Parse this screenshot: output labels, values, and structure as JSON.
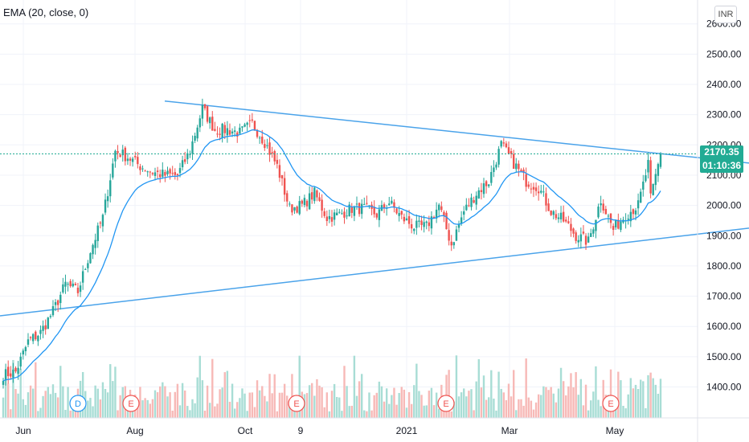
{
  "legend": {
    "indicator": "EMA (20, close, 0)"
  },
  "currency": "INR",
  "last_price": {
    "value": "2170.35",
    "countdown": "01:10:36"
  },
  "colors": {
    "up": "#26a69a",
    "down": "#ef5350",
    "ema": "#2196f3",
    "trendline": "#4aa3ea",
    "price_line": "#22ab94",
    "volume_up": "#a8ddd5",
    "volume_down": "#f7b9b7"
  },
  "event_markers": [
    {
      "label": "D",
      "color": "#2196f3",
      "date": "Jul 06"
    },
    {
      "label": "E",
      "color": "#ef5350",
      "date": "Aug 05"
    },
    {
      "label": "E",
      "color": "#ef5350",
      "date": "Nov 02"
    },
    {
      "label": "E",
      "color": "#ef5350",
      "date": "Feb 01"
    },
    {
      "label": "E",
      "color": "#ef5350",
      "date": "May 03"
    }
  ],
  "chart_data": {
    "type": "candlestick",
    "title": "",
    "xlabel": "",
    "ylabel": "",
    "x_ticks": [
      "Jun",
      "Aug",
      "Oct",
      "9",
      "2021",
      "Mar",
      "May"
    ],
    "y_ticks": [
      "1400.00",
      "1500.00",
      "1600.00",
      "1700.00",
      "1800.00",
      "1900.00",
      "2000.00",
      "2100.00",
      "2200.00",
      "2300.00",
      "2400.00",
      "2500.00",
      "2600.00"
    ],
    "ylim": [
      1310,
      2660
    ],
    "grid": true,
    "approx_close_series": [
      {
        "date": "May 26",
        "close": 1440
      },
      {
        "date": "Jun 01",
        "close": 1450
      },
      {
        "date": "Jun 08",
        "close": 1550
      },
      {
        "date": "Jun 15",
        "close": 1580
      },
      {
        "date": "Jun 22",
        "close": 1650
      },
      {
        "date": "Jun 29",
        "close": 1740
      },
      {
        "date": "Jul 06",
        "close": 1715
      },
      {
        "date": "Jul 13",
        "close": 1850
      },
      {
        "date": "Jul 20",
        "close": 1960
      },
      {
        "date": "Jul 27",
        "close": 2180
      },
      {
        "date": "Aug 03",
        "close": 2160
      },
      {
        "date": "Aug 10",
        "close": 2130
      },
      {
        "date": "Aug 17",
        "close": 2110
      },
      {
        "date": "Aug 24",
        "close": 2100
      },
      {
        "date": "Aug 31",
        "close": 2100
      },
      {
        "date": "Sep 07",
        "close": 2180
      },
      {
        "date": "Sep 14",
        "close": 2320
      },
      {
        "date": "Sep 21",
        "close": 2250
      },
      {
        "date": "Sep 28",
        "close": 2250
      },
      {
        "date": "Oct 05",
        "close": 2240
      },
      {
        "date": "Oct 12",
        "close": 2270
      },
      {
        "date": "Oct 19",
        "close": 2210
      },
      {
        "date": "Oct 26",
        "close": 2130
      },
      {
        "date": "Nov 02",
        "close": 1990
      },
      {
        "date": "Nov 09",
        "close": 2000
      },
      {
        "date": "Nov 16",
        "close": 2040
      },
      {
        "date": "Nov 23",
        "close": 1960
      },
      {
        "date": "Nov 30",
        "close": 1970
      },
      {
        "date": "Dec 07",
        "close": 1990
      },
      {
        "date": "Dec 14",
        "close": 1990
      },
      {
        "date": "Dec 21",
        "close": 1970
      },
      {
        "date": "Dec 28",
        "close": 2010
      },
      {
        "date": "Jan 04",
        "close": 1960
      },
      {
        "date": "Jan 11",
        "close": 1930
      },
      {
        "date": "Jan 18",
        "close": 1930
      },
      {
        "date": "Jan 25",
        "close": 2000
      },
      {
        "date": "Feb 01",
        "close": 1870
      },
      {
        "date": "Feb 08",
        "close": 1980
      },
      {
        "date": "Feb 15",
        "close": 2040
      },
      {
        "date": "Feb 22",
        "close": 2080
      },
      {
        "date": "Mar 01",
        "close": 2200
      },
      {
        "date": "Mar 08",
        "close": 2140
      },
      {
        "date": "Mar 15",
        "close": 2080
      },
      {
        "date": "Mar 22",
        "close": 2060
      },
      {
        "date": "Mar 29",
        "close": 1980
      },
      {
        "date": "Apr 05",
        "close": 1950
      },
      {
        "date": "Apr 12",
        "close": 1900
      },
      {
        "date": "Apr 19",
        "close": 1880
      },
      {
        "date": "Apr 26",
        "close": 2020
      },
      {
        "date": "May 03",
        "close": 1920
      },
      {
        "date": "May 10",
        "close": 1970
      },
      {
        "date": "May 17",
        "close": 2000
      },
      {
        "date": "May 24",
        "close": 2170.35
      }
    ],
    "trendlines": [
      {
        "from": {
          "date": "Jul 27",
          "price": 2345
        },
        "to": {
          "date": "Jun 2021",
          "price": 2140
        }
      },
      {
        "from": {
          "date": "May 2020",
          "price": 1635
        },
        "to": {
          "date": "Jun 2021",
          "price": 1925
        }
      }
    ]
  }
}
